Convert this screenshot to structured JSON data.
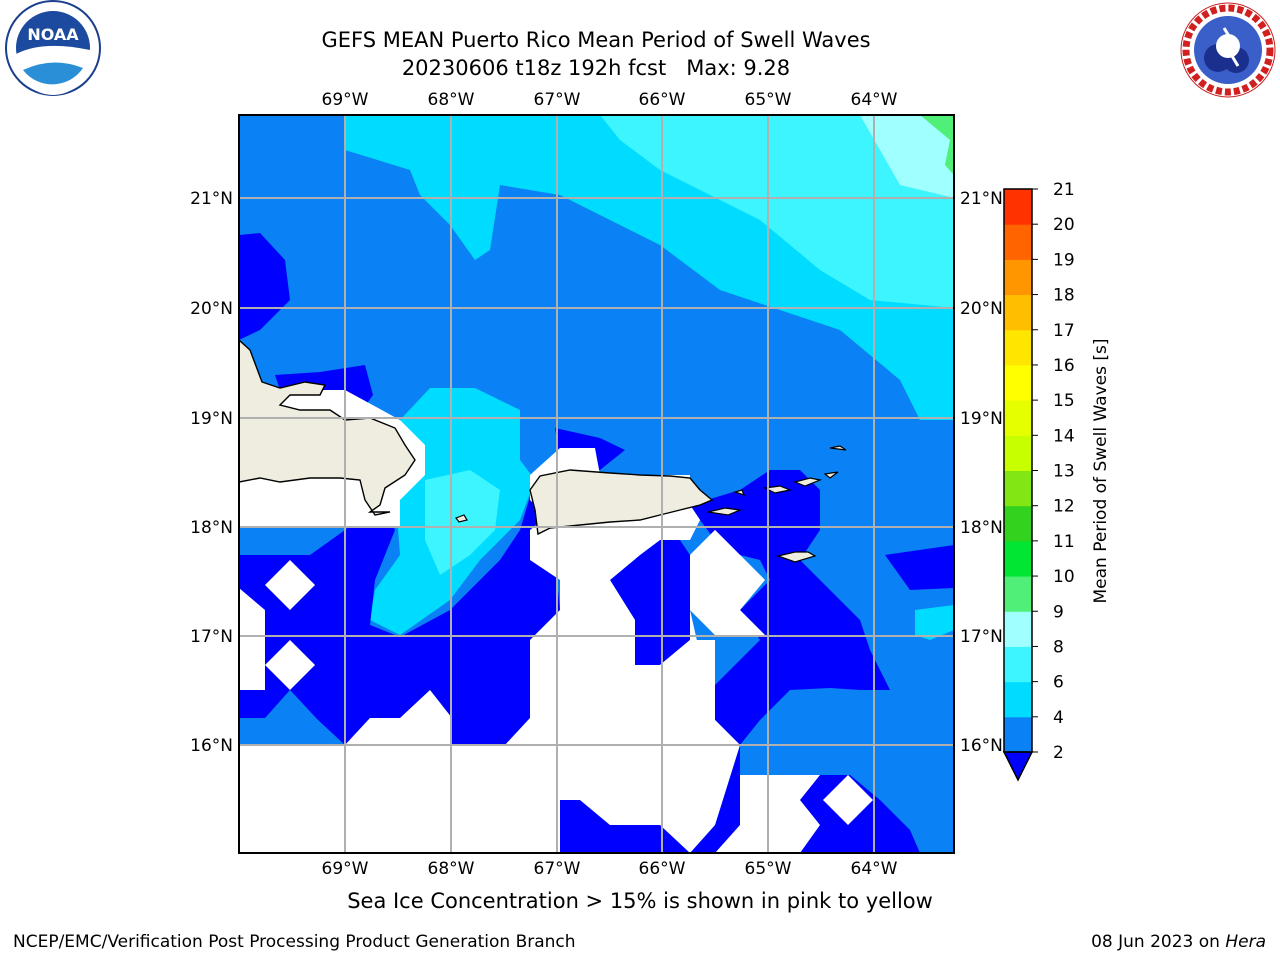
{
  "title": {
    "line1": "GEFS MEAN Puerto Rico Mean Period of Swell Waves",
    "line2": "20230606 t18z 192h fcst   Max: 9.28"
  },
  "logos": {
    "left": {
      "name": "NOAA",
      "ring_text": "NATIONAL OCEANIC AND ATMOSPHERIC ADMINISTRATION · U.S. DEPARTMENT OF COMMERCE",
      "icon": "noaa-logo"
    },
    "right": {
      "ring_text": "NATIONAL WEATHER SERVICE",
      "icon": "nws-logo"
    }
  },
  "map": {
    "lon_labels": [
      "69°W",
      "68°W",
      "67°W",
      "66°W",
      "65°W",
      "64°W"
    ],
    "lat_labels": [
      "21°N",
      "20°N",
      "19°N",
      "18°N",
      "17°N",
      "16°N"
    ],
    "land_color": "#eeeddf",
    "gridline_color": "#b0b0b0"
  },
  "colorbar": {
    "label": "Mean Period of Swell Waves [s]",
    "ticks": [
      "2",
      "4",
      "6",
      "8",
      "9",
      "10",
      "11",
      "12",
      "13",
      "14",
      "15",
      "16",
      "17",
      "18",
      "19",
      "20",
      "21"
    ],
    "colors": [
      "#0a82f5",
      "#00dcff",
      "#3cf5ff",
      "#a0ffff",
      "#50f078",
      "#00e632",
      "#32d21e",
      "#82e614",
      "#c8ff00",
      "#e6ff00",
      "#ffff00",
      "#ffe600",
      "#ffbe00",
      "#ff9600",
      "#ff6400",
      "#ff3200",
      "#ff0000"
    ],
    "below_color": "#0000ff"
  },
  "chart_data": {
    "type": "heatmap",
    "title": "GEFS MEAN Puerto Rico Mean Period of Swell Waves",
    "subtitle": "20230606 t18z 192h fcst   Max: 9.28",
    "max_value": 9.28,
    "variable": "Mean Period of Swell Waves",
    "units": "s",
    "levels": [
      2,
      4,
      6,
      8,
      9,
      10,
      11,
      12,
      13,
      14,
      15,
      16,
      17,
      18,
      19,
      20,
      21
    ],
    "xlim": [
      "70°W",
      "63.2°W"
    ],
    "ylim": [
      "15°N",
      "21.75°N"
    ]
  },
  "caption": "Sea Ice Concentration > 15% is shown in pink to yellow",
  "footer": {
    "left": "NCEP/EMC/Verification Post Processing Product Generation Branch",
    "right_prefix": "08 Jun 2023 on ",
    "right_host": "Hera"
  }
}
